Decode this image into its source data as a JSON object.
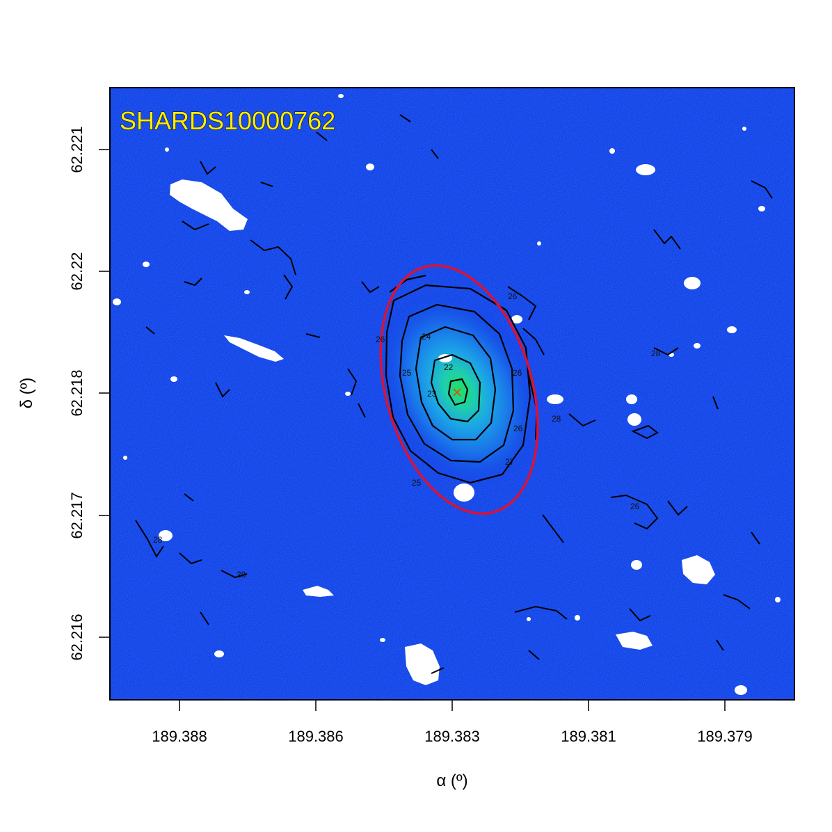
{
  "object_id": "SHARDS10000762",
  "x_axis": {
    "label": "α (º)",
    "ticks": [
      "189.388",
      "189.386",
      "189.383",
      "189.381",
      "189.379"
    ]
  },
  "y_axis": {
    "label": "δ (º)",
    "ticks": [
      "62.221",
      "62.22",
      "62.218",
      "62.217",
      "62.216"
    ]
  },
  "contour_labels": [
    "22",
    "23",
    "24",
    "25",
    "26",
    "27",
    "28",
    "26",
    "25",
    "26",
    "28",
    "26",
    "28",
    "28",
    "26"
  ],
  "colors": {
    "background": "#1040e6",
    "core": "#22e070",
    "contour": "#000000",
    "aperture": "#dd1133",
    "title": "#ffee00",
    "masked": "#ffffff"
  }
}
